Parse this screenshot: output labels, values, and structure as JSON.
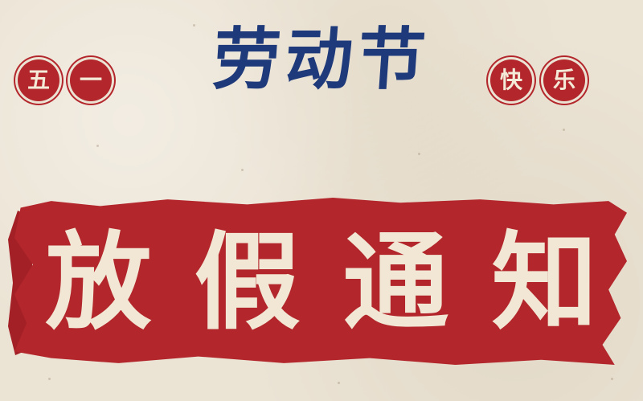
{
  "left_badges": [
    "五",
    "一"
  ],
  "title": "劳动节",
  "right_badges": [
    "快",
    "乐"
  ],
  "notice": [
    "放",
    "假",
    "通",
    "知"
  ],
  "colors": {
    "red": "#b3262b",
    "blue": "#1f3a7a",
    "paper": "#ebe3d4",
    "cream_text": "#f1e7d4"
  }
}
